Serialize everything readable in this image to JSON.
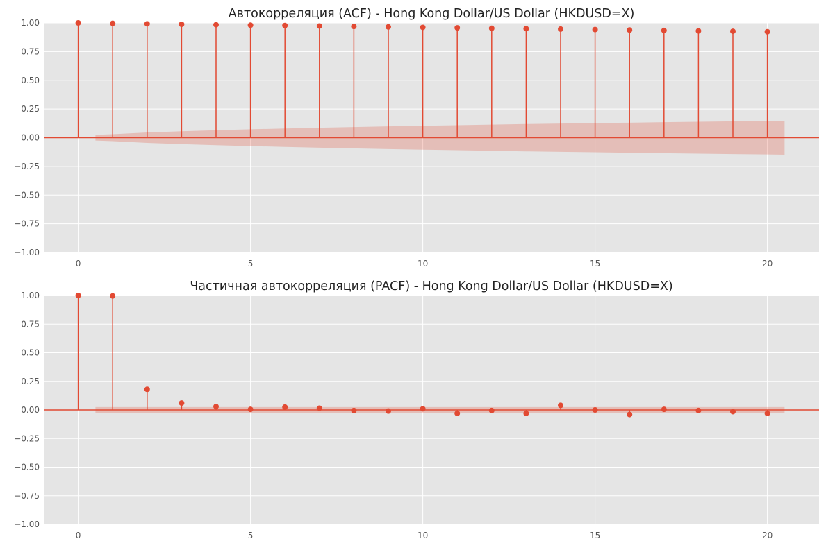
{
  "colors": {
    "background": "#e5e5e5",
    "grid": "#ffffff",
    "stem": "#e24a33",
    "confidence_band": "#e24a33",
    "text": "#555555"
  },
  "chart_data": [
    {
      "type": "stem",
      "title": "Автокорреляция (ACF) - Hong Kong Dollar/US Dollar (HKDUSD=X)",
      "xlabel": "",
      "ylabel": "",
      "xlim": [
        -1,
        21.5
      ],
      "ylim": [
        -1.0,
        1.0
      ],
      "xticks": [
        0,
        5,
        10,
        15,
        20
      ],
      "xtick_labels": [
        "0",
        "5",
        "10",
        "15",
        "20"
      ],
      "yticks": [
        1.0,
        0.75,
        0.5,
        0.25,
        0.0,
        -0.25,
        -0.5,
        -0.75,
        -1.0
      ],
      "ytick_labels": [
        "1.00",
        "0.75",
        "0.50",
        "0.25",
        "0.00",
        "−0.25",
        "−0.50",
        "−0.75",
        "−1.00"
      ],
      "grid": true,
      "lags": [
        0,
        1,
        2,
        3,
        4,
        5,
        6,
        7,
        8,
        9,
        10,
        11,
        12,
        13,
        14,
        15,
        16,
        17,
        18,
        19,
        20
      ],
      "values": [
        1.0,
        0.996,
        0.992,
        0.988,
        0.984,
        0.98,
        0.977,
        0.973,
        0.969,
        0.965,
        0.961,
        0.957,
        0.953,
        0.95,
        0.946,
        0.942,
        0.938,
        0.934,
        0.93,
        0.927,
        0.923
      ],
      "confidence_band": {
        "lags": [
          0.5,
          1,
          2,
          3,
          4,
          5,
          6,
          7,
          8,
          9,
          10,
          11,
          12,
          13,
          14,
          15,
          16,
          17,
          18,
          19,
          20,
          20.5
        ],
        "upper": [
          0.025,
          0.03,
          0.045,
          0.056,
          0.065,
          0.073,
          0.08,
          0.087,
          0.093,
          0.099,
          0.104,
          0.109,
          0.114,
          0.119,
          0.123,
          0.127,
          0.131,
          0.135,
          0.139,
          0.143,
          0.146,
          0.148
        ]
      }
    },
    {
      "type": "stem",
      "title": "Частичная автокорреляция (PACF) - Hong Kong Dollar/US Dollar (HKDUSD=X)",
      "xlabel": "",
      "ylabel": "",
      "xlim": [
        -1,
        21.5
      ],
      "ylim": [
        -1.0,
        1.0
      ],
      "xticks": [
        0,
        5,
        10,
        15,
        20
      ],
      "xtick_labels": [
        "0",
        "5",
        "10",
        "15",
        "20"
      ],
      "yticks": [
        1.0,
        0.75,
        0.5,
        0.25,
        0.0,
        -0.25,
        -0.5,
        -0.75,
        -1.0
      ],
      "ytick_labels": [
        "1.00",
        "0.75",
        "0.50",
        "0.25",
        "0.00",
        "−0.25",
        "−0.50",
        "−0.75",
        "−1.00"
      ],
      "grid": true,
      "lags": [
        0,
        1,
        2,
        3,
        4,
        5,
        6,
        7,
        8,
        9,
        10,
        11,
        12,
        13,
        14,
        15,
        16,
        17,
        18,
        19,
        20
      ],
      "values": [
        1.0,
        0.996,
        0.18,
        0.06,
        0.03,
        0.005,
        0.025,
        0.015,
        -0.005,
        -0.01,
        0.01,
        -0.03,
        -0.005,
        -0.03,
        0.04,
        0.0,
        -0.04,
        0.005,
        -0.005,
        -0.015,
        -0.03
      ],
      "confidence_band": {
        "lags": [
          0.5,
          20.5
        ],
        "upper": [
          0.025,
          0.025
        ]
      }
    }
  ]
}
